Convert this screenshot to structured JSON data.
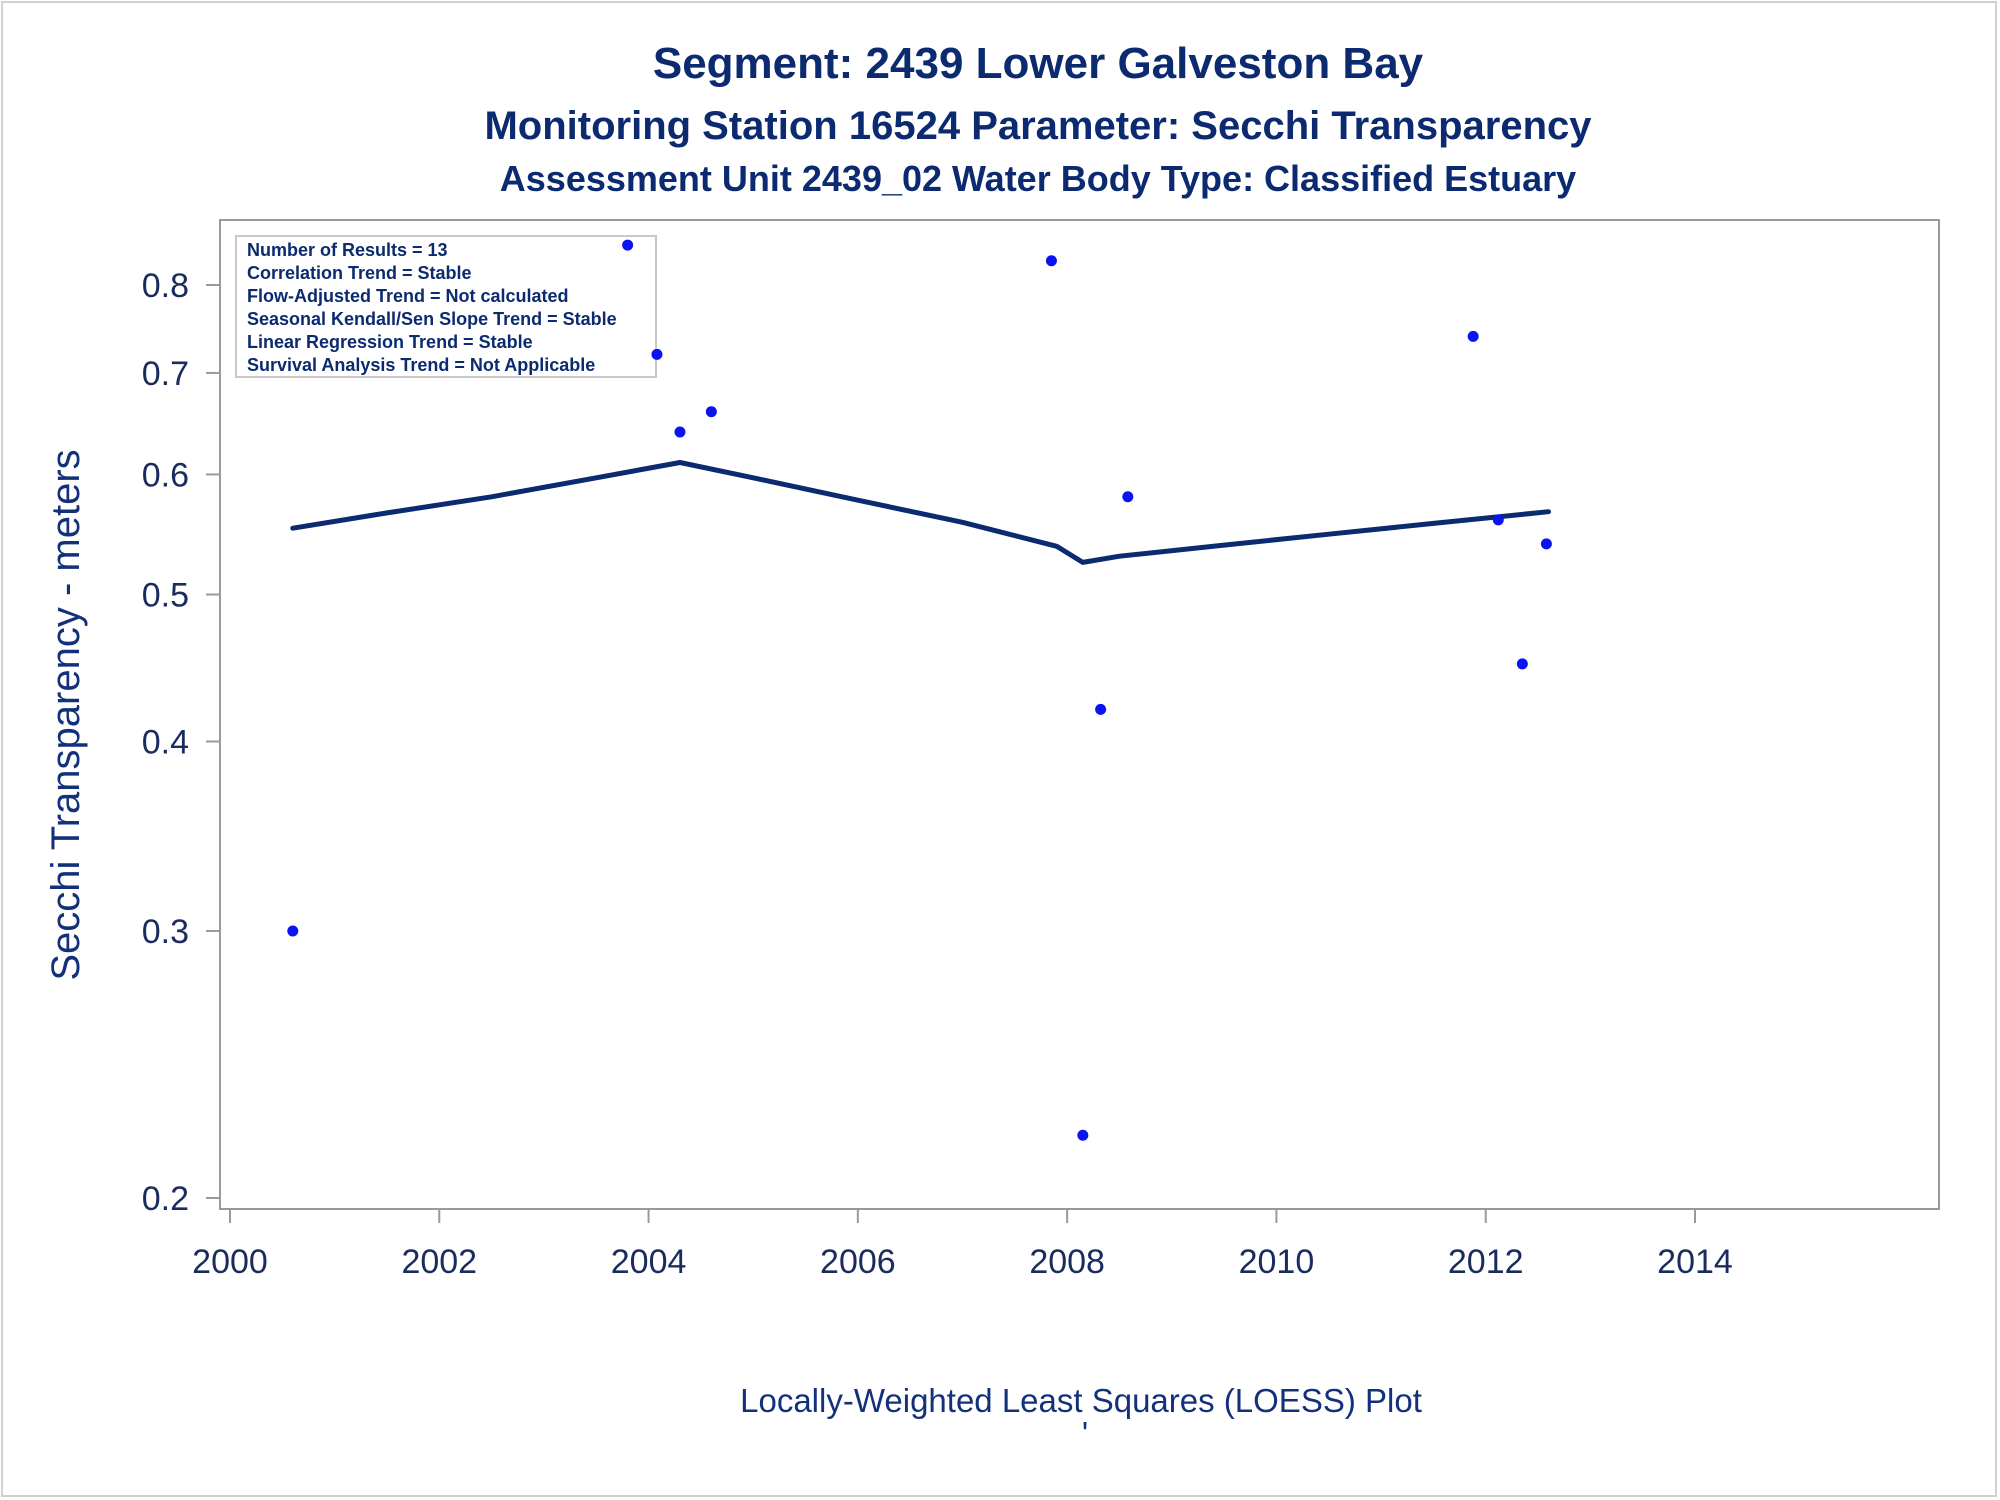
{
  "chart_data": {
    "type": "scatter",
    "title": "Segment: 2439  Lower Galveston Bay",
    "subtitle": "Monitoring Station 16524 Parameter: Secchi Transparency",
    "subtitle2": "Assessment Unit 2439_02   Water Body Type: Classified Estuary",
    "ylabel": "Secchi Transparency - meters",
    "xlabel": "",
    "footnote": "Locally-Weighted Least Squares (LOESS) Plot",
    "footnote2": "'",
    "x_ticks": [
      "2000",
      "2002",
      "2004",
      "2006",
      "2008",
      "2010",
      "2012",
      "2014"
    ],
    "y_ticks": [
      "0.2",
      "0.3",
      "0.4",
      "0.5",
      "0.6",
      "0.7",
      "0.8"
    ],
    "xlim": [
      2000,
      2014
    ],
    "ylim": [
      0.2,
      0.85
    ],
    "yscale": "log",
    "grid": false,
    "legend_position": "top-left",
    "legend_lines": [
      "Number of Results = 13",
      "Correlation Trend = Stable",
      "Flow-Adjusted Trend = Not calculated",
      "Seasonal Kendall/Sen Slope Trend = Stable",
      "Linear Regression Trend = Stable",
      "Survival Analysis Trend = Not Applicable"
    ],
    "points": [
      {
        "x": 2000.6,
        "y": 0.3
      },
      {
        "x": 2003.8,
        "y": 0.85
      },
      {
        "x": 2004.08,
        "y": 0.72
      },
      {
        "x": 2004.3,
        "y": 0.64
      },
      {
        "x": 2004.6,
        "y": 0.66
      },
      {
        "x": 2007.85,
        "y": 0.83
      },
      {
        "x": 2008.15,
        "y": 0.22
      },
      {
        "x": 2008.32,
        "y": 0.42
      },
      {
        "x": 2008.58,
        "y": 0.58
      },
      {
        "x": 2011.88,
        "y": 0.74
      },
      {
        "x": 2012.12,
        "y": 0.56
      },
      {
        "x": 2012.35,
        "y": 0.45
      },
      {
        "x": 2012.58,
        "y": 0.54
      }
    ],
    "loess": [
      {
        "x": 2000.6,
        "y": 0.553
      },
      {
        "x": 2001.5,
        "y": 0.566
      },
      {
        "x": 2002.5,
        "y": 0.58
      },
      {
        "x": 2003.5,
        "y": 0.597
      },
      {
        "x": 2004.3,
        "y": 0.611
      },
      {
        "x": 2005.0,
        "y": 0.597
      },
      {
        "x": 2006.0,
        "y": 0.577
      },
      {
        "x": 2007.0,
        "y": 0.558
      },
      {
        "x": 2007.9,
        "y": 0.538
      },
      {
        "x": 2008.15,
        "y": 0.525
      },
      {
        "x": 2008.5,
        "y": 0.53
      },
      {
        "x": 2009.5,
        "y": 0.539
      },
      {
        "x": 2010.5,
        "y": 0.548
      },
      {
        "x": 2011.5,
        "y": 0.557
      },
      {
        "x": 2012.6,
        "y": 0.567
      }
    ],
    "colors": {
      "text": "#0b2a6f",
      "points": "#0a14f0",
      "line": "#0b2a6f",
      "axis": "#9a9a9a"
    }
  }
}
